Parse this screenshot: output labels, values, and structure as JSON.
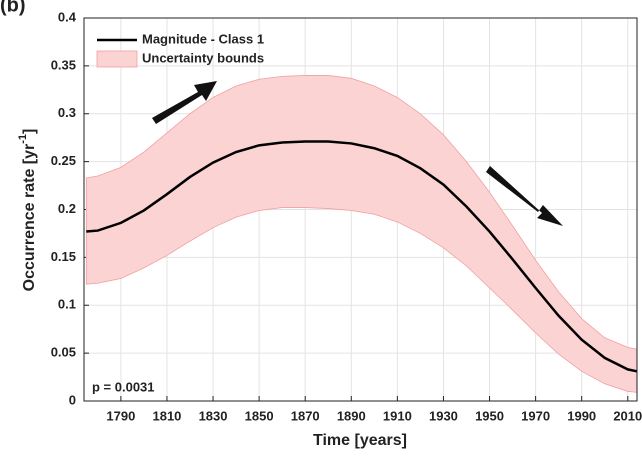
{
  "chart_data": {
    "type": "line",
    "panel_label": "(b)",
    "xlabel": "Time [years]",
    "ylabel": [
      "Occurrence  rate [yr",
      "-1",
      "]"
    ],
    "annotation": "p = 0.0031",
    "x": [
      1775,
      1780,
      1790,
      1800,
      1810,
      1820,
      1830,
      1840,
      1850,
      1860,
      1870,
      1880,
      1890,
      1900,
      1910,
      1920,
      1930,
      1940,
      1950,
      1960,
      1970,
      1980,
      1990,
      2000,
      2010,
      2014
    ],
    "series": [
      {
        "name": "Magnitude - Class 1",
        "color": "#000000",
        "values": [
          0.177,
          0.178,
          0.186,
          0.199,
          0.216,
          0.234,
          0.249,
          0.26,
          0.267,
          0.27,
          0.271,
          0.271,
          0.269,
          0.264,
          0.256,
          0.243,
          0.226,
          0.203,
          0.177,
          0.148,
          0.118,
          0.089,
          0.064,
          0.045,
          0.033,
          0.031
        ]
      },
      {
        "name": "Uncertainty bounds",
        "color": "#fbd3d3",
        "upper": [
          0.233,
          0.235,
          0.244,
          0.26,
          0.28,
          0.3,
          0.317,
          0.329,
          0.336,
          0.339,
          0.34,
          0.34,
          0.337,
          0.329,
          0.317,
          0.3,
          0.278,
          0.25,
          0.218,
          0.183,
          0.147,
          0.114,
          0.086,
          0.066,
          0.056,
          0.054
        ],
        "lower": [
          0.122,
          0.123,
          0.128,
          0.139,
          0.152,
          0.167,
          0.181,
          0.192,
          0.199,
          0.202,
          0.202,
          0.201,
          0.199,
          0.195,
          0.187,
          0.175,
          0.16,
          0.141,
          0.118,
          0.095,
          0.071,
          0.049,
          0.031,
          0.018,
          0.01,
          0.009
        ]
      }
    ],
    "xlim": [
      1774,
      2014
    ],
    "ylim": [
      0,
      0.4
    ],
    "xticks": [
      1790,
      1810,
      1830,
      1850,
      1870,
      1890,
      1910,
      1930,
      1950,
      1970,
      1990,
      2010
    ],
    "yticks": [
      0,
      0.05,
      0.1,
      0.15,
      0.2,
      0.25,
      0.3,
      0.35,
      0.4
    ],
    "grid": true
  }
}
